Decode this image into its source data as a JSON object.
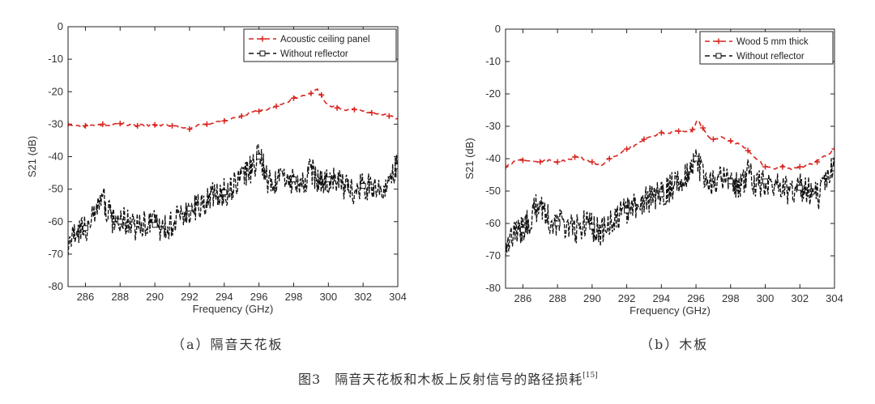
{
  "colors": {
    "red": "#d8241f",
    "black": "#111111",
    "axis": "#222222"
  },
  "figure": {
    "label": "图3",
    "title": "隔音天花板和木板上反射信号的路径损耗",
    "ref": "[15]"
  },
  "chart_data": [
    {
      "type": "line",
      "id": "a",
      "caption": "（a）隔音天花板",
      "xlabel": "Frequency (GHz)",
      "ylabel": "S21 (dB)",
      "xlim": [
        285,
        304
      ],
      "ylim": [
        -80,
        0
      ],
      "xticks": [
        286,
        288,
        290,
        292,
        294,
        296,
        298,
        300,
        302,
        304
      ],
      "yticks": [
        0,
        -10,
        -20,
        -30,
        -40,
        -50,
        -60,
        -70,
        -80
      ],
      "legend_position": "top-right",
      "series": [
        {
          "name": "Acoustic ceiling panel",
          "style": "red-dashed-plus",
          "x": [
            285,
            285.5,
            286,
            286.5,
            287,
            287.5,
            288,
            288.5,
            289,
            289.5,
            290,
            290.5,
            291,
            291.5,
            292,
            292.5,
            293,
            293.5,
            294,
            294.5,
            295,
            295.5,
            296,
            296.5,
            297,
            297.5,
            298,
            298.5,
            299,
            299.3,
            299.6,
            300,
            300.5,
            301,
            301.5,
            302,
            302.5,
            303,
            303.5,
            304
          ],
          "values": [
            -30,
            -30.5,
            -30.5,
            -30.2,
            -30,
            -30.3,
            -29.8,
            -30.2,
            -30.5,
            -30.3,
            -30.2,
            -30.4,
            -30.5,
            -31,
            -31.5,
            -30.5,
            -30,
            -29.5,
            -29,
            -28,
            -27.5,
            -26.5,
            -26,
            -25.5,
            -24.5,
            -23.5,
            -22,
            -21.5,
            -20.5,
            -19,
            -21,
            -24.5,
            -25,
            -25.5,
            -25.5,
            -26,
            -26.5,
            -27,
            -27.5,
            -28.5
          ]
        },
        {
          "name": "Without reflector",
          "style": "black-dashed-square",
          "x": [
            285,
            285.5,
            286,
            286.5,
            287,
            287.5,
            288,
            288.5,
            289,
            289.5,
            290,
            290.5,
            291,
            291.5,
            292,
            292.5,
            293,
            293.5,
            294,
            294.5,
            295,
            295.5,
            296,
            296.5,
            297,
            297.5,
            298,
            298.5,
            299,
            299.5,
            300,
            300.5,
            301,
            301.5,
            302,
            302.5,
            303,
            303.5,
            304
          ],
          "values": [
            -66,
            -63,
            -62,
            -58,
            -53,
            -59,
            -60,
            -60,
            -62,
            -60,
            -61,
            -63,
            -60,
            -58,
            -56,
            -55,
            -53,
            -52,
            -51,
            -49,
            -47,
            -44,
            -40,
            -47,
            -48,
            -46,
            -47,
            -49,
            -44,
            -48,
            -47,
            -48,
            -49,
            -51,
            -49,
            -50,
            -52,
            -47,
            -43
          ]
        }
      ]
    },
    {
      "type": "line",
      "id": "b",
      "caption": "（b）木板",
      "xlabel": "Frequency (GHz)",
      "ylabel": "S21 (dB)",
      "xlim": [
        285,
        304
      ],
      "ylim": [
        -80,
        0
      ],
      "xticks": [
        286,
        288,
        290,
        292,
        294,
        296,
        298,
        300,
        302,
        304
      ],
      "yticks": [
        0,
        -10,
        -20,
        -30,
        -40,
        -50,
        -60,
        -70,
        -80
      ],
      "legend_position": "top-right",
      "series": [
        {
          "name": "Wood 5 mm thick",
          "style": "red-dashed-plus",
          "x": [
            285,
            285.5,
            286,
            286.5,
            287,
            287.5,
            288,
            288.5,
            289,
            289.5,
            290,
            290.5,
            291,
            291.5,
            292,
            292.5,
            293,
            293.5,
            294,
            294.5,
            295,
            295.5,
            295.8,
            296.1,
            296.4,
            296.7,
            297,
            297.5,
            298,
            298.5,
            299,
            299.5,
            300,
            300.5,
            301,
            301.5,
            302,
            302.5,
            303,
            303.5,
            304
          ],
          "values": [
            -42.5,
            -41,
            -40.5,
            -40.8,
            -41,
            -40.5,
            -41,
            -40.5,
            -39.5,
            -40,
            -41,
            -42,
            -40,
            -38.5,
            -37,
            -36,
            -34,
            -33,
            -32,
            -32,
            -31.5,
            -32,
            -31,
            -28,
            -30.5,
            -33.5,
            -34,
            -33.5,
            -34.5,
            -35.5,
            -37.5,
            -40,
            -42.5,
            -43,
            -42.5,
            -43,
            -42.5,
            -42,
            -41,
            -39,
            -37
          ]
        },
        {
          "name": "Without reflector",
          "style": "black-dashed-square",
          "x": [
            285,
            285.5,
            286,
            286.5,
            287,
            287.5,
            288,
            288.5,
            289,
            289.5,
            290,
            290.5,
            291,
            291.5,
            292,
            292.5,
            293,
            293.5,
            294,
            294.5,
            295,
            295.5,
            296,
            296.5,
            297,
            297.5,
            298,
            298.5,
            299,
            299.5,
            300,
            300.5,
            301,
            301.5,
            302,
            302.5,
            303,
            303.5,
            304
          ],
          "values": [
            -66,
            -63,
            -62,
            -58,
            -53,
            -59,
            -60,
            -60,
            -62,
            -60,
            -61,
            -63,
            -60,
            -58,
            -56,
            -55,
            -53,
            -52,
            -51,
            -49,
            -47,
            -44,
            -40,
            -47,
            -48,
            -46,
            -47,
            -49,
            -44,
            -48,
            -47,
            -48,
            -49,
            -51,
            -49,
            -50,
            -52,
            -47,
            -43
          ]
        }
      ]
    }
  ]
}
